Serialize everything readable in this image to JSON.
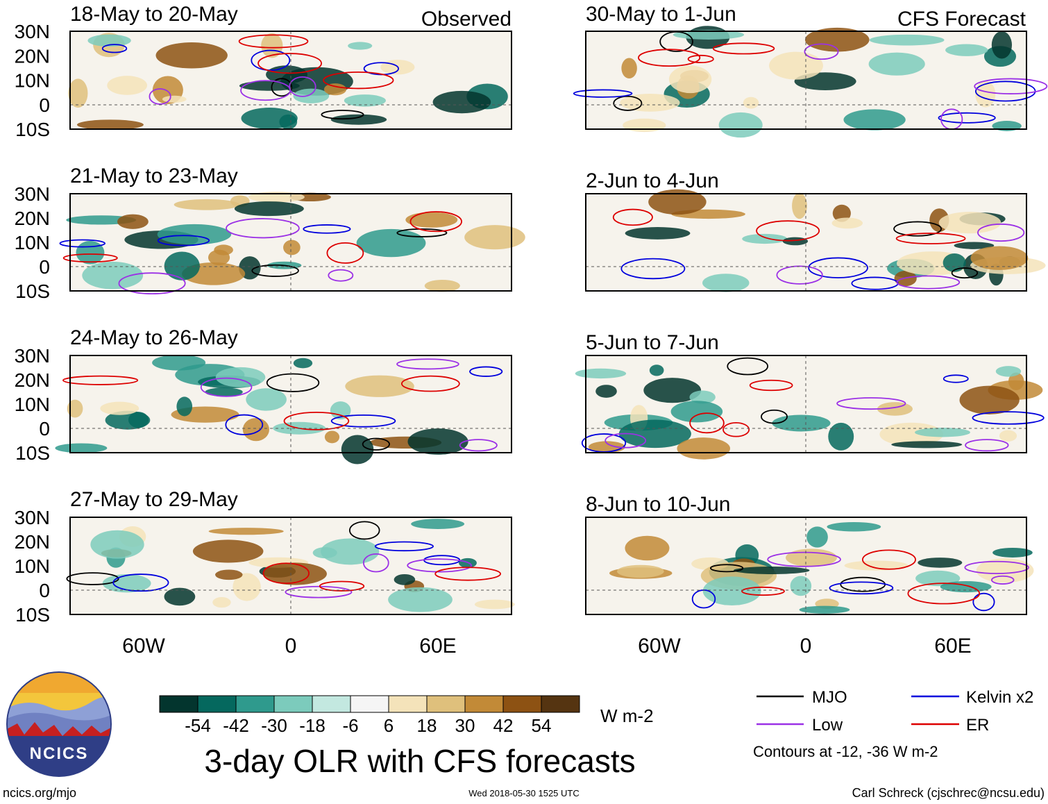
{
  "chart_data": {
    "type": "heatmap",
    "title": "3-day OLR with CFS forecasts",
    "units": "W m-2",
    "header_left": "Observed",
    "header_right": "CFS Forecast",
    "lat_ticks": [
      "30N",
      "20N",
      "10N",
      "0",
      "10S"
    ],
    "lon_ticks": [
      "60W",
      "0",
      "60E"
    ],
    "lat_range": [
      -10,
      30
    ],
    "lon_range": [
      -90,
      90
    ],
    "panels": [
      {
        "label": "18-May to 20-May",
        "column": "observed"
      },
      {
        "label": "21-May to 23-May",
        "column": "observed"
      },
      {
        "label": "24-May to 26-May",
        "column": "observed"
      },
      {
        "label": "27-May to 29-May",
        "column": "observed"
      },
      {
        "label": "30-May to 1-Jun",
        "column": "forecast"
      },
      {
        "label": "2-Jun to 4-Jun",
        "column": "forecast"
      },
      {
        "label": "5-Jun to 7-Jun",
        "column": "forecast"
      },
      {
        "label": "8-Jun to 10-Jun",
        "column": "forecast"
      }
    ],
    "colorbar": {
      "labels": [
        "-54",
        "-42",
        "-30",
        "-18",
        "-6",
        "6",
        "18",
        "30",
        "42",
        "54"
      ],
      "colors": [
        "#03352e",
        "#05685e",
        "#2f9a8d",
        "#7ccbbc",
        "#c3e8e0",
        "#f5f5f5",
        "#f4e3ba",
        "#dfc07c",
        "#c28a37",
        "#8d5213",
        "#553411"
      ]
    },
    "legend": [
      {
        "name": "MJO",
        "color": "#000000"
      },
      {
        "name": "Kelvin x2",
        "color": "#0000dd"
      },
      {
        "name": "Low",
        "color": "#9b30e6"
      },
      {
        "name": "ER",
        "color": "#dd0000"
      }
    ],
    "contour_note": "Contours at -12, -36 W m-2"
  },
  "footer": {
    "left": "ncics.org/mjo",
    "center": "Wed 2018-05-30 1525 UTC",
    "right": "Carl Schreck (cjschrec@ncsu.edu)"
  },
  "logo_text": "NCICS"
}
